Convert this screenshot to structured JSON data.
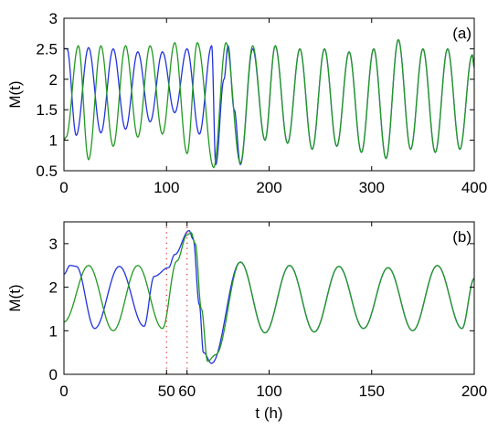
{
  "chart_data": [
    {
      "type": "line",
      "panel_label": "(a)",
      "xlabel": "",
      "ylabel": "M(t)",
      "xlim": [
        0,
        400
      ],
      "ylim": [
        0.5,
        3
      ],
      "xticks": [
        0,
        100,
        200,
        300,
        400
      ],
      "xtick_labels": [
        "0",
        "100",
        "200",
        "300",
        "400"
      ],
      "yticks": [
        0.5,
        1,
        1.5,
        2,
        2.5,
        3
      ],
      "ytick_labels": [
        "0.5",
        "1",
        "1.5",
        "2",
        "2.5",
        "3"
      ],
      "grid": false,
      "series": [
        {
          "color": "#2233dd",
          "x": [
            0,
            3,
            12,
            24,
            36,
            48,
            60,
            72,
            84,
            96,
            108,
            120,
            132,
            144,
            148,
            156,
            160,
            166,
            172,
            184,
            196,
            206,
            218,
            230,
            242,
            254,
            266,
            278,
            290,
            302,
            314,
            326,
            338,
            350,
            362,
            374,
            386,
            398,
            400
          ],
          "y": [
            2.5,
            2.5,
            1.08,
            2.52,
            1.12,
            2.5,
            1.18,
            2.45,
            1.3,
            2.45,
            1.45,
            2.5,
            1.1,
            2.55,
            0.6,
            2.0,
            2.55,
            1.5,
            0.6,
            2.5,
            1.0,
            2.55,
            0.95,
            2.5,
            0.85,
            2.5,
            0.9,
            2.45,
            0.8,
            2.5,
            0.7,
            2.65,
            0.85,
            2.5,
            0.8,
            2.5,
            0.85,
            2.4,
            2.2
          ]
        },
        {
          "color": "#229922",
          "x": [
            0,
            2,
            14,
            24,
            36,
            48,
            60,
            72,
            84,
            96,
            108,
            120,
            130,
            146,
            158,
            172,
            184,
            196,
            206,
            218,
            230,
            242,
            254,
            266,
            278,
            290,
            302,
            314,
            326,
            338,
            350,
            362,
            374,
            386,
            398,
            400
          ],
          "y": [
            1.0,
            1.05,
            2.55,
            0.68,
            2.55,
            0.9,
            2.55,
            1.05,
            2.55,
            1.1,
            2.6,
            0.78,
            2.6,
            0.55,
            2.6,
            0.62,
            2.55,
            1.0,
            2.55,
            0.95,
            2.5,
            0.85,
            2.5,
            0.9,
            2.45,
            0.8,
            2.5,
            0.7,
            2.65,
            0.85,
            2.5,
            0.8,
            2.5,
            0.85,
            2.4,
            2.2
          ]
        }
      ]
    },
    {
      "type": "line",
      "panel_label": "(b)",
      "xlabel": "t (h)",
      "ylabel": "M(t)",
      "xlim": [
        0,
        200
      ],
      "ylim": [
        0,
        3.5
      ],
      "xticks": [
        0,
        50,
        60,
        100,
        150,
        200
      ],
      "xtick_labels": [
        "0",
        "50",
        "60",
        "100",
        "150",
        "200"
      ],
      "yticks": [
        0,
        1,
        2,
        3
      ],
      "ytick_labels": [
        "0",
        "1",
        "2",
        "3"
      ],
      "grid": false,
      "vlines": [
        50,
        60
      ],
      "vline_color": "#dd2222",
      "series": [
        {
          "color": "#2233dd",
          "x": [
            0,
            3,
            6,
            15,
            27,
            39,
            44,
            51,
            54,
            61,
            63,
            66,
            68,
            72,
            86,
            98,
            110,
            122,
            134,
            146,
            158,
            170,
            182,
            194,
            200
          ],
          "y": [
            2.3,
            2.5,
            2.48,
            1.05,
            2.48,
            1.1,
            2.25,
            2.45,
            2.75,
            3.3,
            3.1,
            1.6,
            0.5,
            0.25,
            2.58,
            0.95,
            2.5,
            0.97,
            2.48,
            1.05,
            2.45,
            1.0,
            2.5,
            1.05,
            2.2
          ]
        },
        {
          "color": "#229922",
          "x": [
            0,
            12,
            24,
            36,
            48,
            55,
            60,
            62,
            64,
            67,
            70,
            74,
            86,
            98,
            110,
            122,
            134,
            146,
            158,
            170,
            182,
            194,
            200
          ],
          "y": [
            1.2,
            2.5,
            1.0,
            2.5,
            1.05,
            2.6,
            3.2,
            3.25,
            3.0,
            1.5,
            0.3,
            0.45,
            2.58,
            0.95,
            2.5,
            0.97,
            2.48,
            1.05,
            2.45,
            1.0,
            2.5,
            1.05,
            2.2
          ]
        }
      ]
    }
  ]
}
